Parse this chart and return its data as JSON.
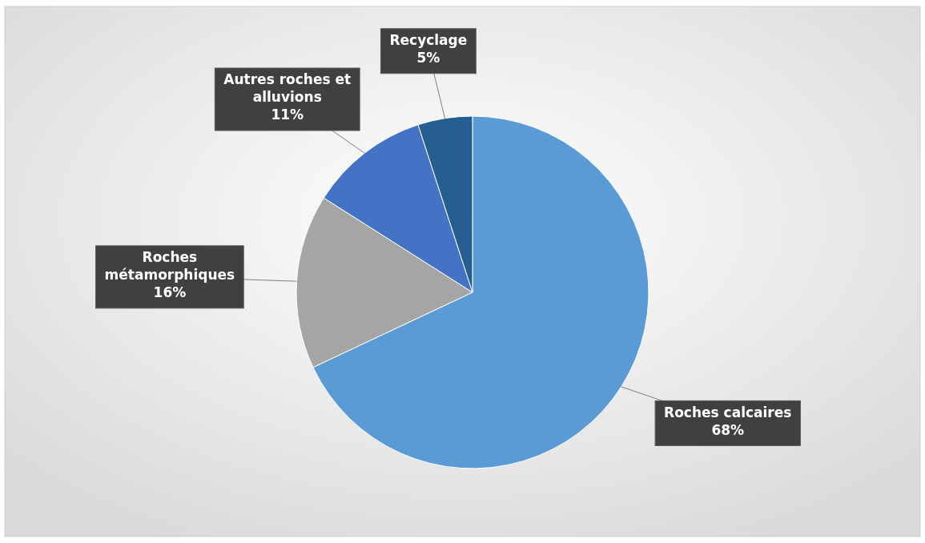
{
  "chart_data": {
    "type": "pie",
    "categories": [
      "Roches calcaires",
      "Roches métamorphiques",
      "Autres roches et alluvions",
      "Recyclage"
    ],
    "values": [
      68,
      16,
      11,
      5
    ],
    "colors": [
      "#5b9bd5",
      "#a5a5a5",
      "#4472c4",
      "#255e91"
    ],
    "value_labels": [
      "68%",
      "16%",
      "11%",
      "5%"
    ]
  }
}
